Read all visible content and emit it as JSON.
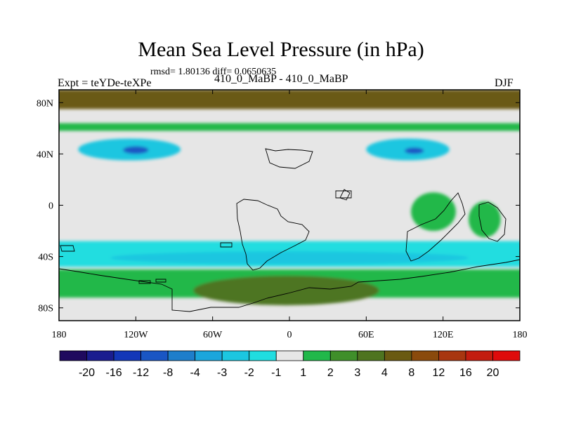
{
  "chart_data": {
    "type": "heatmap",
    "title": "Mean Sea Level Pressure (in hPa)",
    "stats_line": "rmsd= 1.80136 diff= 0.0650635",
    "left_label": "Expt = teYDe-teXPe",
    "center_label": "410_0_MaBP - 410_0_MaBP",
    "right_label": "DJF",
    "x_ticks": [
      "180",
      "120W",
      "60W",
      "0",
      "60E",
      "120E",
      "180"
    ],
    "x_tick_values": [
      -180,
      -120,
      -60,
      0,
      60,
      120,
      180
    ],
    "y_ticks": [
      "80N",
      "40N",
      "0",
      "40S",
      "80S"
    ],
    "y_tick_values": [
      80,
      40,
      0,
      -40,
      -80
    ],
    "xlim": [
      -180,
      180
    ],
    "ylim": [
      -90,
      90
    ],
    "levels": [
      -20,
      -16,
      -12,
      -8,
      -4,
      -3,
      -2,
      -1,
      1,
      2,
      3,
      4,
      8,
      12,
      16,
      20
    ],
    "colorbar_labels": [
      "-20",
      "-16",
      "-12",
      "-8",
      "-4",
      "-3",
      "-2",
      "-1",
      "1",
      "2",
      "3",
      "4",
      "8",
      "12",
      "16",
      "20"
    ],
    "colors": [
      "#1f0a5e",
      "#1a1d8f",
      "#1337b8",
      "#1a56c4",
      "#1e7ecb",
      "#1ba6dc",
      "#1cc6e0",
      "#20dde0",
      "#e6e6e6",
      "#21b84a",
      "#3f8f2a",
      "#4e7420",
      "#6a5a12",
      "#8a4a0c",
      "#a83610",
      "#c31d0f",
      "#de0b0b"
    ],
    "regions": [
      {
        "name": "north-polar-high",
        "level_index": 12,
        "lon": [
          -180,
          180
        ],
        "lat": [
          75,
          90
        ]
      },
      {
        "name": "northern-green-band",
        "level_index": 9,
        "lon": [
          -180,
          180
        ],
        "lat": [
          58,
          64
        ]
      },
      {
        "name": "north-pacific-low",
        "level_index": 6,
        "lon": [
          -165,
          -85
        ],
        "lat": [
          35,
          52
        ]
      },
      {
        "name": "north-pacific-low-core",
        "level_index": 3,
        "lon": [
          -130,
          -110
        ],
        "lat": [
          40,
          46
        ]
      },
      {
        "name": "north-atlantic-low",
        "level_index": 6,
        "lon": [
          60,
          125
        ],
        "lat": [
          35,
          52
        ]
      },
      {
        "name": "north-atlantic-low-core",
        "level_index": 3,
        "lon": [
          90,
          105
        ],
        "lat": [
          40,
          45
        ]
      },
      {
        "name": "southern-cyan-band",
        "level_index": 7,
        "lon": [
          -180,
          180
        ],
        "lat": [
          -48,
          -28
        ]
      },
      {
        "name": "southern-blue-band",
        "level_index": 6,
        "lon": [
          -140,
          140
        ],
        "lat": [
          -46,
          -36
        ]
      },
      {
        "name": "southern-ocean-green",
        "level_index": 9,
        "lon": [
          -180,
          180
        ],
        "lat": [
          -72,
          -50
        ]
      },
      {
        "name": "antarctic-brown",
        "level_index": 11,
        "lon": [
          -75,
          70
        ],
        "lat": [
          -78,
          -55
        ]
      },
      {
        "name": "nz-green",
        "level_index": 9,
        "lon": [
          140,
          165
        ],
        "lat": [
          -25,
          3
        ]
      },
      {
        "name": "australia-green",
        "level_index": 9,
        "lon": [
          95,
          130
        ],
        "lat": [
          -20,
          10
        ]
      }
    ]
  }
}
